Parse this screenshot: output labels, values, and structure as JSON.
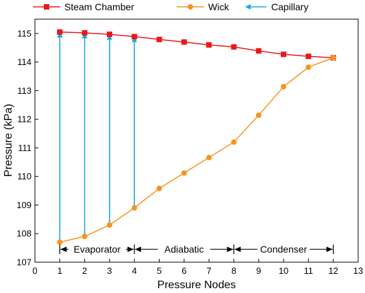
{
  "chart_data": {
    "type": "line",
    "title": "",
    "xlabel": "Pressure Nodes",
    "ylabel": "Pressure (kPa)",
    "xlim": [
      0,
      13
    ],
    "ylim": [
      107,
      115.5
    ],
    "xticks": [
      0,
      1,
      2,
      3,
      4,
      5,
      6,
      7,
      8,
      9,
      10,
      11,
      12,
      13
    ],
    "yticks": [
      107,
      108,
      109,
      110,
      111,
      112,
      113,
      114,
      115
    ],
    "grid": false,
    "legend_position": "top",
    "series": [
      {
        "name": "Steam Chamber",
        "color": "#e8191c",
        "marker": "square",
        "x": [
          1,
          2,
          3,
          4,
          5,
          6,
          7,
          8,
          9,
          10,
          11,
          12
        ],
        "values": [
          115.05,
          115.02,
          114.97,
          114.89,
          114.79,
          114.7,
          114.6,
          114.53,
          114.39,
          114.27,
          114.2,
          114.15
        ]
      },
      {
        "name": "Wick",
        "color": "#f7941d",
        "marker": "circle",
        "x": [
          1,
          2,
          3,
          4,
          5,
          6,
          7,
          8,
          9,
          10,
          11,
          12
        ],
        "values": [
          107.7,
          107.9,
          108.3,
          108.9,
          109.58,
          110.12,
          110.66,
          111.2,
          112.14,
          113.14,
          113.82,
          114.15
        ]
      }
    ],
    "capillary": {
      "name": "Capillary",
      "color": "#19a8e0",
      "arrows": [
        {
          "x": 1,
          "from": 107.7,
          "to": 115.05
        },
        {
          "x": 2,
          "from": 107.9,
          "to": 115.02
        },
        {
          "x": 3,
          "from": 108.3,
          "to": 114.97
        },
        {
          "x": 4,
          "from": 108.9,
          "to": 114.89
        }
      ]
    },
    "regions": [
      {
        "label": "Evaporator",
        "from": 1,
        "to": 4
      },
      {
        "label": "Adiabatic",
        "from": 4,
        "to": 8
      },
      {
        "label": "Condenser",
        "from": 8,
        "to": 12
      }
    ],
    "region_y": 107.45
  }
}
